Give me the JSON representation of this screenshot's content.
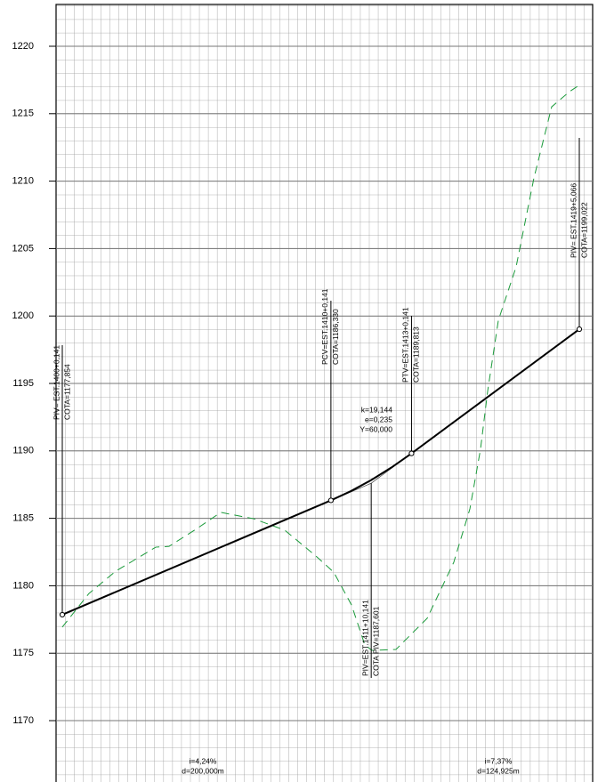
{
  "chart_data": {
    "type": "profile",
    "ylim": [
      1165.45,
      1223.1
    ],
    "yticks": [
      1170,
      1175,
      1180,
      1185,
      1190,
      1195,
      1200,
      1205,
      1210,
      1215,
      1220
    ],
    "xlim": [
      27995.5,
      28395.0
    ],
    "grid": true,
    "grade_line": {
      "color": "#000000",
      "x": [
        28000.141,
        28200.141,
        28215.141,
        28230.141,
        28245.141,
        28260.141,
        28385.066
      ],
      "y": [
        1177.854,
        1186.33,
        1187.024,
        1187.837,
        1188.766,
        1189.813,
        1199.022
      ]
    },
    "ground": {
      "color": "#1a9a3a",
      "x": [
        28000.1,
        28020.0,
        28039.9,
        28069.7,
        28079.6,
        28099.5,
        28118.1,
        28142.6,
        28165.8,
        28189.0,
        28202.2,
        28215.5,
        28225.4,
        28230.7,
        28248.6,
        28271.8,
        28291.6,
        28303.6,
        28311.5,
        28316.8,
        28324.8,
        28338.0,
        28351.3,
        28364.5,
        28377.8,
        28385.7
      ],
      "y": [
        1176.93,
        1179.43,
        1181.08,
        1182.86,
        1182.92,
        1184.18,
        1185.44,
        1184.97,
        1184.12,
        1182.2,
        1181.01,
        1178.57,
        1175.61,
        1175.21,
        1175.28,
        1177.59,
        1181.74,
        1185.7,
        1190.12,
        1194.41,
        1199.68,
        1203.64,
        1210.24,
        1215.51,
        1216.64,
        1217.16
      ]
    },
    "points": [
      {
        "x": 28000.141,
        "y": 1177.854,
        "labels": [
          "PIV= EST.1400+0,141",
          "COTA=1177,854"
        ]
      },
      {
        "x": 28200.141,
        "y": 1186.33,
        "labels": [
          "PCV=EST.1410+0,141",
          "COTA=1186,330"
        ]
      },
      {
        "x": 28230.141,
        "y": 1187.601,
        "labels": [
          "PIV=EST.1411+10,141",
          "COTA PIV=1187,601"
        ]
      },
      {
        "x": 28260.141,
        "y": 1189.813,
        "labels": [
          "PTV=EST.1413+0,141",
          "COTA=1189,813"
        ]
      },
      {
        "x": 28385.066,
        "y": 1199.022,
        "labels": [
          "PIV= EST.1419+5,066",
          "COTA=1199,022"
        ]
      }
    ],
    "curve_labels": [
      "k=19,144",
      "e=0,235",
      "Y=60,000"
    ],
    "grade_labels": [
      [
        "i=4,24%",
        "d=200,000m"
      ],
      [
        "i=7,37%",
        "d=124,925m"
      ]
    ]
  }
}
